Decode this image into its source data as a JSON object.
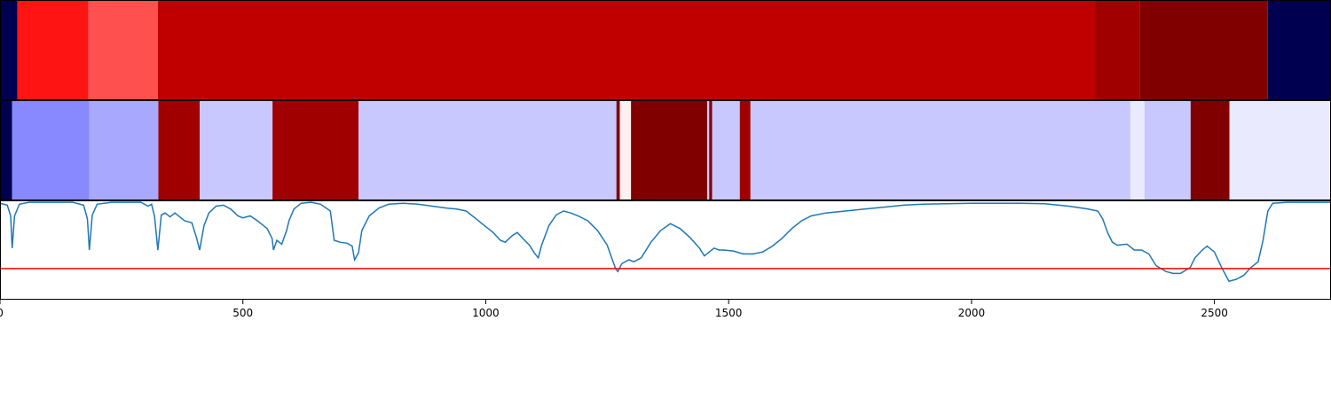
{
  "chart_data": {
    "type": "heatmap",
    "x_range": [
      0,
      2740
    ],
    "x_ticks": [
      0,
      500,
      1000,
      1500,
      2000,
      2500
    ],
    "x_tick_labels": [
      "0",
      "500",
      "1000",
      "1500",
      "2000",
      "2500"
    ],
    "tracks": [
      {
        "segments": [
          {
            "start": 0,
            "end": 36,
            "color": "#000050"
          },
          {
            "start": 36,
            "end": 182,
            "color": "#ff1414"
          },
          {
            "start": 182,
            "end": 325,
            "color": "#ff5050"
          },
          {
            "start": 325,
            "end": 2255,
            "color": "#c00000"
          },
          {
            "start": 2255,
            "end": 2347,
            "color": "#a00000"
          },
          {
            "start": 2347,
            "end": 2610,
            "color": "#800000"
          },
          {
            "start": 2610,
            "end": 2740,
            "color": "#000050"
          }
        ]
      },
      {
        "segments": [
          {
            "start": 0,
            "end": 25,
            "color": "#000050"
          },
          {
            "start": 25,
            "end": 184,
            "color": "#8888ff"
          },
          {
            "start": 184,
            "end": 326,
            "color": "#a8a8ff"
          },
          {
            "start": 326,
            "end": 411,
            "color": "#a00000"
          },
          {
            "start": 411,
            "end": 561,
            "color": "#c8c8ff"
          },
          {
            "start": 561,
            "end": 738,
            "color": "#a00000"
          },
          {
            "start": 738,
            "end": 1269,
            "color": "#c8c8ff"
          },
          {
            "start": 1269,
            "end": 1276,
            "color": "#800000"
          },
          {
            "start": 1276,
            "end": 1299,
            "color": "#fff0f0"
          },
          {
            "start": 1299,
            "end": 1456,
            "color": "#800000"
          },
          {
            "start": 1456,
            "end": 1460,
            "color": "#c8c8ff"
          },
          {
            "start": 1460,
            "end": 1466,
            "color": "#800000"
          },
          {
            "start": 1466,
            "end": 1523,
            "color": "#c8c8ff"
          },
          {
            "start": 1523,
            "end": 1545,
            "color": "#a00000"
          },
          {
            "start": 1545,
            "end": 2327,
            "color": "#c8c8ff"
          },
          {
            "start": 2327,
            "end": 2356,
            "color": "#eaeaff"
          },
          {
            "start": 2356,
            "end": 2451,
            "color": "#c8c8ff"
          },
          {
            "start": 2451,
            "end": 2531,
            "color": "#800000"
          },
          {
            "start": 2531,
            "end": 2740,
            "color": "#eaeaff"
          }
        ]
      }
    ],
    "line": {
      "color": "#1f77b4",
      "y_range": [
        0,
        1
      ],
      "points": [
        [
          0,
          0.98
        ],
        [
          15,
          0.96
        ],
        [
          22,
          0.85
        ],
        [
          25,
          0.52
        ],
        [
          30,
          0.85
        ],
        [
          40,
          0.97
        ],
        [
          60,
          0.99
        ],
        [
          150,
          0.99
        ],
        [
          172,
          0.96
        ],
        [
          180,
          0.82
        ],
        [
          184,
          0.5
        ],
        [
          190,
          0.86
        ],
        [
          200,
          0.97
        ],
        [
          230,
          0.99
        ],
        [
          290,
          0.99
        ],
        [
          305,
          0.95
        ],
        [
          312,
          0.97
        ],
        [
          318,
          0.85
        ],
        [
          325,
          0.5
        ],
        [
          332,
          0.86
        ],
        [
          340,
          0.88
        ],
        [
          350,
          0.84
        ],
        [
          360,
          0.88
        ],
        [
          380,
          0.8
        ],
        [
          395,
          0.78
        ],
        [
          405,
          0.62
        ],
        [
          411,
          0.5
        ],
        [
          420,
          0.75
        ],
        [
          430,
          0.88
        ],
        [
          445,
          0.95
        ],
        [
          460,
          0.96
        ],
        [
          475,
          0.92
        ],
        [
          490,
          0.85
        ],
        [
          500,
          0.83
        ],
        [
          515,
          0.85
        ],
        [
          530,
          0.8
        ],
        [
          540,
          0.76
        ],
        [
          550,
          0.72
        ],
        [
          560,
          0.62
        ],
        [
          563,
          0.5
        ],
        [
          570,
          0.6
        ],
        [
          580,
          0.56
        ],
        [
          590,
          0.7
        ],
        [
          595,
          0.8
        ],
        [
          605,
          0.92
        ],
        [
          620,
          0.98
        ],
        [
          640,
          0.99
        ],
        [
          660,
          0.97
        ],
        [
          680,
          0.9
        ],
        [
          688,
          0.6
        ],
        [
          700,
          0.58
        ],
        [
          715,
          0.57
        ],
        [
          725,
          0.54
        ],
        [
          730,
          0.4
        ],
        [
          738,
          0.47
        ],
        [
          745,
          0.7
        ],
        [
          760,
          0.85
        ],
        [
          780,
          0.93
        ],
        [
          800,
          0.97
        ],
        [
          830,
          0.98
        ],
        [
          860,
          0.97
        ],
        [
          890,
          0.95
        ],
        [
          920,
          0.93
        ],
        [
          940,
          0.92
        ],
        [
          960,
          0.9
        ],
        [
          980,
          0.82
        ],
        [
          1000,
          0.74
        ],
        [
          1015,
          0.68
        ],
        [
          1030,
          0.6
        ],
        [
          1040,
          0.58
        ],
        [
          1055,
          0.65
        ],
        [
          1065,
          0.68
        ],
        [
          1080,
          0.6
        ],
        [
          1090,
          0.55
        ],
        [
          1100,
          0.47
        ],
        [
          1108,
          0.42
        ],
        [
          1115,
          0.55
        ],
        [
          1130,
          0.75
        ],
        [
          1145,
          0.86
        ],
        [
          1160,
          0.9
        ],
        [
          1175,
          0.88
        ],
        [
          1190,
          0.85
        ],
        [
          1210,
          0.8
        ],
        [
          1230,
          0.7
        ],
        [
          1250,
          0.55
        ],
        [
          1262,
          0.38
        ],
        [
          1268,
          0.3
        ],
        [
          1272,
          0.28
        ],
        [
          1280,
          0.36
        ],
        [
          1295,
          0.4
        ],
        [
          1305,
          0.38
        ],
        [
          1320,
          0.42
        ],
        [
          1340,
          0.58
        ],
        [
          1360,
          0.7
        ],
        [
          1380,
          0.77
        ],
        [
          1400,
          0.72
        ],
        [
          1420,
          0.63
        ],
        [
          1440,
          0.52
        ],
        [
          1450,
          0.44
        ],
        [
          1460,
          0.48
        ],
        [
          1470,
          0.52
        ],
        [
          1480,
          0.5
        ],
        [
          1490,
          0.5
        ],
        [
          1510,
          0.49
        ],
        [
          1530,
          0.46
        ],
        [
          1550,
          0.46
        ],
        [
          1570,
          0.48
        ],
        [
          1590,
          0.54
        ],
        [
          1610,
          0.62
        ],
        [
          1630,
          0.72
        ],
        [
          1650,
          0.8
        ],
        [
          1670,
          0.85
        ],
        [
          1700,
          0.88
        ],
        [
          1740,
          0.9
        ],
        [
          1780,
          0.92
        ],
        [
          1820,
          0.94
        ],
        [
          1860,
          0.96
        ],
        [
          1900,
          0.97
        ],
        [
          1950,
          0.975
        ],
        [
          2000,
          0.98
        ],
        [
          2100,
          0.98
        ],
        [
          2150,
          0.975
        ],
        [
          2200,
          0.95
        ],
        [
          2240,
          0.92
        ],
        [
          2260,
          0.9
        ],
        [
          2270,
          0.82
        ],
        [
          2280,
          0.68
        ],
        [
          2290,
          0.58
        ],
        [
          2300,
          0.55
        ],
        [
          2320,
          0.56
        ],
        [
          2335,
          0.5
        ],
        [
          2350,
          0.5
        ],
        [
          2365,
          0.46
        ],
        [
          2380,
          0.34
        ],
        [
          2400,
          0.28
        ],
        [
          2415,
          0.26
        ],
        [
          2430,
          0.26
        ],
        [
          2450,
          0.32
        ],
        [
          2460,
          0.42
        ],
        [
          2475,
          0.5
        ],
        [
          2485,
          0.54
        ],
        [
          2500,
          0.48
        ],
        [
          2515,
          0.32
        ],
        [
          2530,
          0.18
        ],
        [
          2545,
          0.2
        ],
        [
          2560,
          0.24
        ],
        [
          2575,
          0.32
        ],
        [
          2590,
          0.38
        ],
        [
          2600,
          0.6
        ],
        [
          2610,
          0.9
        ],
        [
          2620,
          0.98
        ],
        [
          2650,
          0.99
        ],
        [
          2740,
          0.99
        ]
      ]
    },
    "threshold": {
      "y": 0.31,
      "color": "#ff0000"
    }
  }
}
